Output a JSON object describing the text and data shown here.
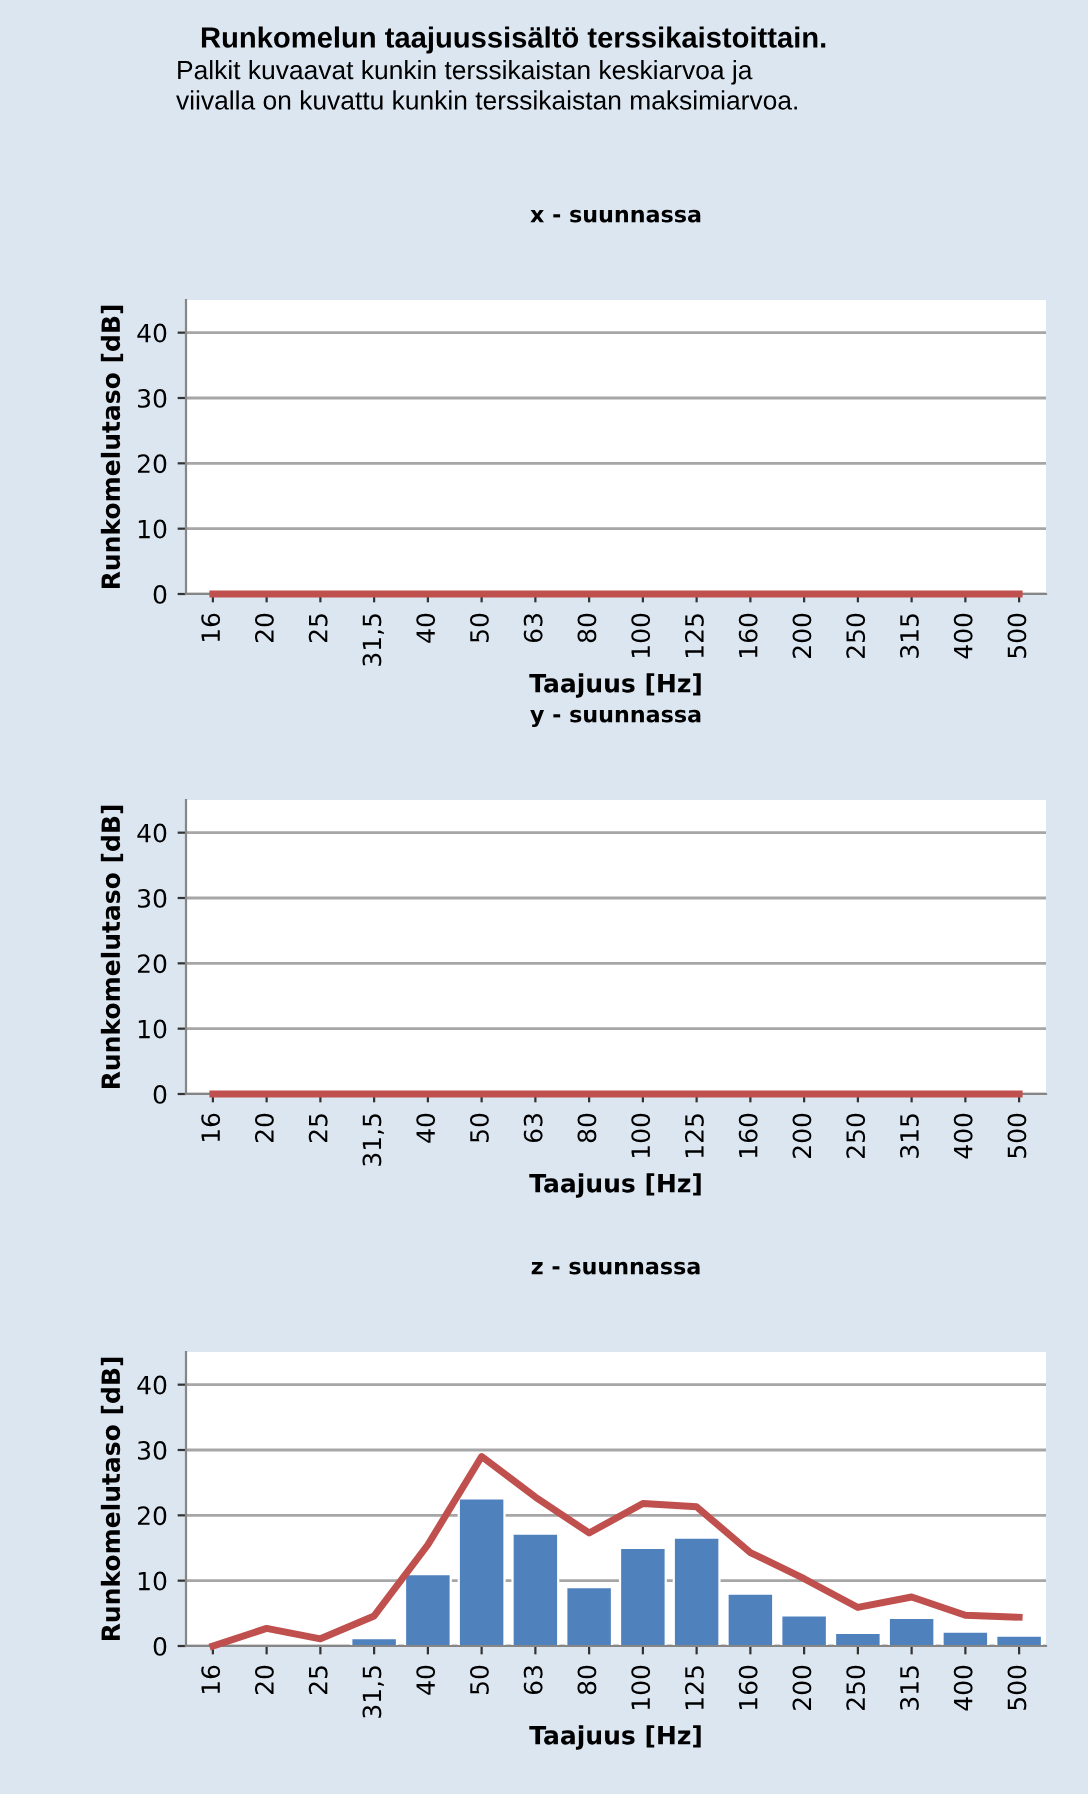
{
  "chart_data": [
    {
      "type": "line",
      "title": "x - suunnassa",
      "xlabel": "Taajuus [Hz]",
      "ylabel": "Runkomelutaso [dB]",
      "annotations": [
        "Runkomelun taajuussisältö terssikaistoittain.",
        "Palkit kuvaavat kunkin terssikaistan keskiarvoa ja\nviivalla on kuvattu kunkin terssikaistan maksimiarvoa."
      ],
      "categories": [
        "16",
        "20",
        "25",
        "31,5",
        "40",
        "50",
        "63",
        "80",
        "100",
        "125",
        "160",
        "200",
        "250",
        "315",
        "400",
        "500"
      ],
      "series": [
        {
          "color": "#c0504d",
          "values": [
            0,
            0,
            0,
            0,
            0,
            0,
            0,
            0,
            0,
            0,
            0,
            0,
            0,
            0,
            0,
            0
          ]
        }
      ],
      "ylim": [
        0,
        45
      ],
      "yticks": [
        0,
        10,
        20,
        30,
        40
      ],
      "grid": "y",
      "legend": false
    },
    {
      "type": "line",
      "title": "y - suunnassa",
      "xlabel": "Taajuus [Hz]",
      "ylabel": "Runkomelutaso [dB]",
      "categories": [
        "16",
        "20",
        "25",
        "31,5",
        "40",
        "50",
        "63",
        "80",
        "100",
        "125",
        "160",
        "200",
        "250",
        "315",
        "400",
        "500"
      ],
      "series": [
        {
          "color": "#c0504d",
          "values": [
            0,
            0,
            0,
            0,
            0,
            0,
            0,
            0,
            0,
            0,
            0,
            0,
            0,
            0,
            0,
            0
          ]
        }
      ],
      "ylim": [
        0,
        45
      ],
      "yticks": [
        0,
        10,
        20,
        30,
        40
      ],
      "grid": "y",
      "legend": false
    },
    {
      "type": "bar",
      "title": "z - suunnassa",
      "xlabel": "Taajuus [Hz]",
      "ylabel": "Runkomelutaso [dB]",
      "categories": [
        "16",
        "20",
        "25",
        "31,5",
        "40",
        "50",
        "63",
        "80",
        "100",
        "125",
        "160",
        "200",
        "250",
        "315",
        "400",
        "500"
      ],
      "series": [
        {
          "color": "#4f81bd",
          "values": [
            null,
            null,
            null,
            1.2,
            11,
            22.6,
            17.2,
            9,
            15,
            16.6,
            8,
            4.7,
            2,
            4.3,
            2.2,
            1.6
          ]
        },
        {
          "type": "line",
          "color": "#c0504d",
          "values": [
            0,
            2.7,
            1.1,
            4.6,
            15.5,
            29,
            22.8,
            17.3,
            21.8,
            21.3,
            14.3,
            10.3,
            5.9,
            7.5,
            4.7,
            4.4
          ]
        }
      ],
      "ylim": [
        0,
        45
      ],
      "yticks": [
        0,
        10,
        20,
        30,
        40
      ],
      "grid": "y",
      "legend": false
    }
  ]
}
